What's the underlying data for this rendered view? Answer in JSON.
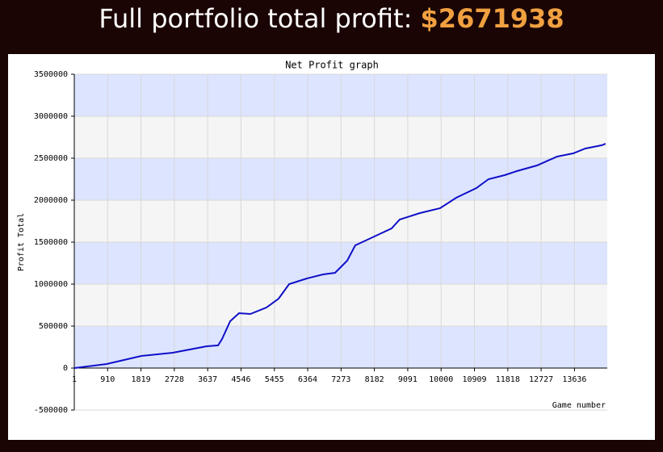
{
  "header": {
    "title": "Full portfolio total profit:",
    "amount": "$2671938"
  },
  "chart_data": {
    "type": "line",
    "title": "Net Profit graph",
    "ylabel": "Profit Total",
    "xlabel": "Game number",
    "xlim": [
      1,
      14530
    ],
    "ylim": [
      -500000,
      3500000
    ],
    "xticks": [
      1,
      910,
      1819,
      2728,
      3637,
      4546,
      5455,
      6364,
      7273,
      8182,
      9091,
      10000,
      10909,
      11818,
      12727,
      13636
    ],
    "yticks": [
      -500000,
      0,
      500000,
      1000000,
      1500000,
      2000000,
      2500000,
      3000000,
      3500000
    ],
    "band_colors": [
      "#dde4ff",
      "#f5f5f5"
    ],
    "grid": true,
    "series": [
      {
        "color": "#1010c8",
        "x": [
          1,
          881,
          1828,
          2686,
          3611,
          3919,
          4029,
          4249,
          4491,
          4799,
          5239,
          5570,
          5856,
          6340,
          6780,
          7110,
          7440,
          7660,
          7991,
          8321,
          8651,
          8871,
          9421,
          9972,
          10412,
          10962,
          11292,
          11732,
          12062,
          12612,
          13162,
          13602,
          13932,
          14373,
          14483
        ],
        "values": [
          0,
          48000,
          144000,
          183000,
          260000,
          270000,
          346000,
          558000,
          654000,
          644000,
          721000,
          827000,
          1000000,
          1067000,
          1115000,
          1135000,
          1279000,
          1462000,
          1529000,
          1596000,
          1663000,
          1769000,
          1846000,
          1904000,
          2029000,
          2144000,
          2250000,
          2298000,
          2346000,
          2413000,
          2519000,
          2558000,
          2615000,
          2654000,
          2671938
        ]
      }
    ]
  }
}
